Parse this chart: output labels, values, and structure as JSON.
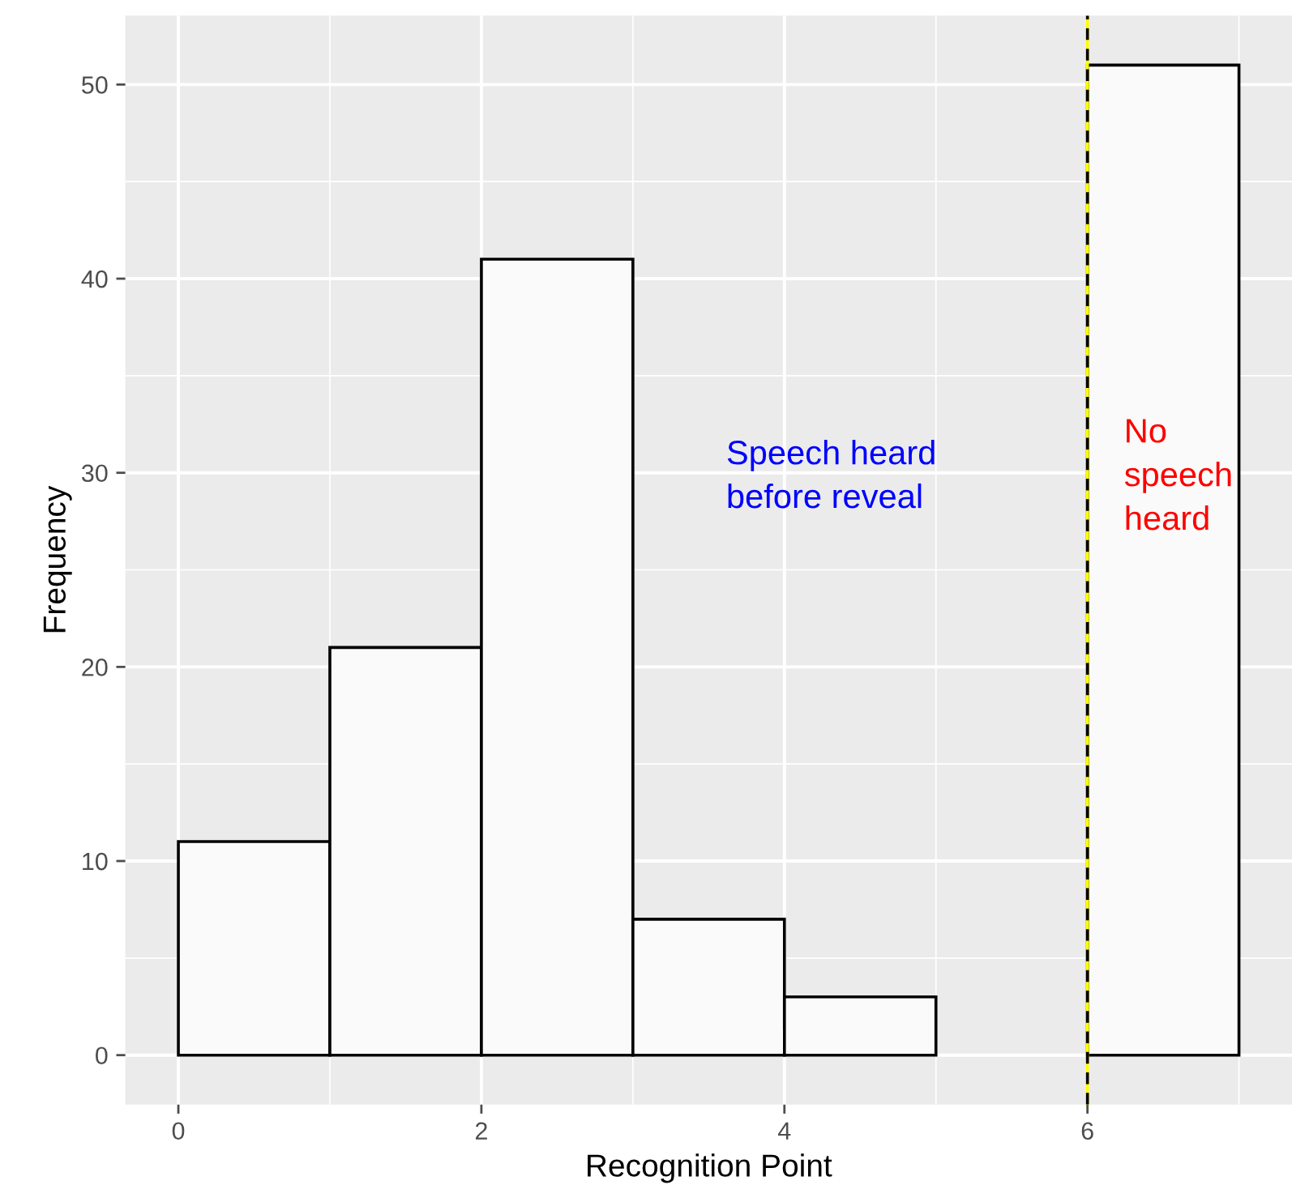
{
  "chart_data": {
    "type": "histogram",
    "xlabel": "Recognition Point",
    "ylabel": "Frequency",
    "bins": [
      0,
      1,
      2,
      3,
      4,
      5,
      6,
      7
    ],
    "values": [
      11,
      21,
      41,
      7,
      3,
      0,
      51
    ],
    "color": "#fafafa",
    "xlim": [
      -0.35,
      7.35
    ],
    "xticks": [
      0,
      2,
      4,
      6
    ],
    "ylim": [
      -2.55,
      53.55
    ],
    "yticks": [
      0,
      10,
      20,
      30,
      40,
      50
    ],
    "grid": true,
    "ref_lines": [
      {
        "axis": "x",
        "value": 6,
        "color": "#ffff00",
        "line_style": "solid"
      },
      {
        "axis": "x",
        "value": 6,
        "color": "#000000",
        "line_style": "dashed"
      }
    ],
    "annotations": [
      "Speech heard\nbefore reveal",
      "No\nspeech\nheard"
    ]
  }
}
